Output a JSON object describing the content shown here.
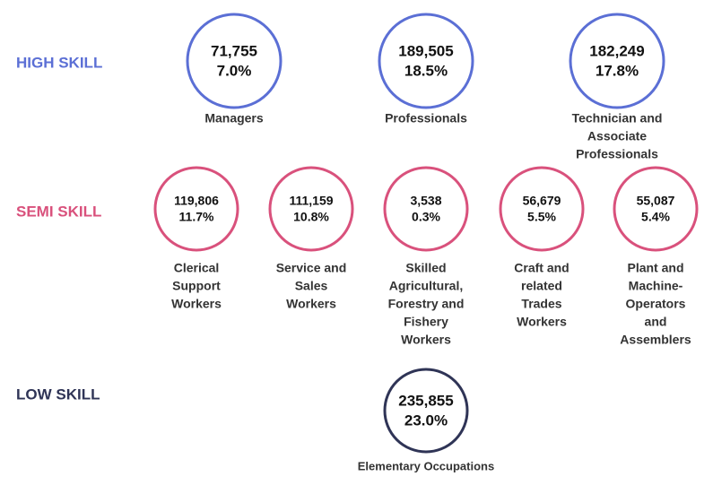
{
  "groups": [
    {
      "label": "HIGH SKILL",
      "color": "#5b6fd5",
      "items": [
        {
          "count": "71,755",
          "percent": "7.0%",
          "label_lines": [
            "Managers"
          ]
        },
        {
          "count": "189,505",
          "percent": "18.5%",
          "label_lines": [
            "Professionals"
          ]
        },
        {
          "count": "182,249",
          "percent": "17.8%",
          "label_lines": [
            "Technician and",
            "Associate",
            "Professionals"
          ]
        }
      ]
    },
    {
      "label": "SEMI SKILL",
      "color": "#d9517c",
      "items": [
        {
          "count": "119,806",
          "percent": "11.7%",
          "label_lines": [
            "Clerical",
            "Support",
            "Workers"
          ]
        },
        {
          "count": "111,159",
          "percent": "10.8%",
          "label_lines": [
            "Service and",
            "Sales",
            "Workers"
          ]
        },
        {
          "count": "3,538",
          "percent": "0.3%",
          "label_lines": [
            "Skilled",
            "Agricultural,",
            "Forestry and",
            "Fishery",
            "Workers"
          ]
        },
        {
          "count": "56,679",
          "percent": "5.5%",
          "label_lines": [
            "Craft and",
            "related",
            "Trades",
            "Workers"
          ]
        },
        {
          "count": "55,087",
          "percent": "5.4%",
          "label_lines": [
            "Plant and",
            "Machine-",
            "Operators",
            "and",
            "Assemblers"
          ]
        }
      ]
    },
    {
      "label": "LOW SKILL",
      "color": "#2f3456",
      "items": [
        {
          "count": "235,855",
          "percent": "23.0%",
          "label_lines": [
            "Elementary Occupations"
          ]
        }
      ]
    }
  ]
}
